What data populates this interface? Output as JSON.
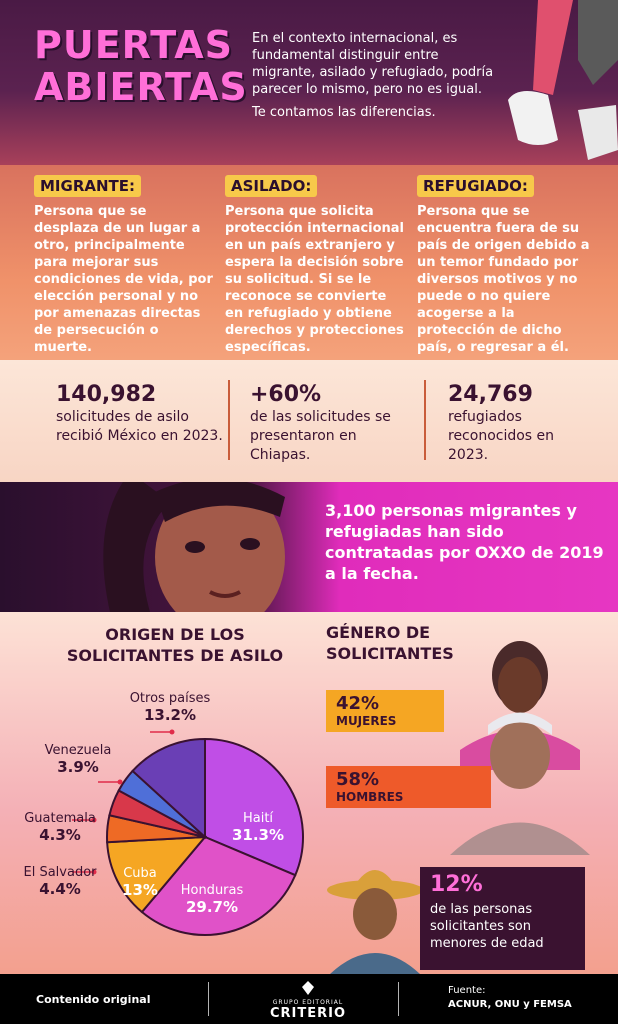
{
  "header": {
    "title_line1": "PUERTAS",
    "title_line2": "ABIERTAS",
    "intro": "En el contexto internacional, es fundamental distinguir entre migrante, asilado y refugiado, podría parecer lo mismo, pero no es igual.",
    "intro_sub": "Te contamos las diferencias."
  },
  "definitions": [
    {
      "term": "MIGRANTE:",
      "text": "Persona que se desplaza de un lugar a otro, principalmente para mejorar sus condiciones de vida, por elección personal y no por amenazas directas de persecución o muerte."
    },
    {
      "term": "ASILADO:",
      "text": "Persona que solicita protección internacional en un país extranjero y espera la decisión sobre su solicitud. Si se le reconoce se convierte en refugiado y obtiene derechos y protecciones específicas."
    },
    {
      "term": "REFUGIADO:",
      "text": "Persona que se encuentra fuera de su país de origen debido a un temor fundado por diversos motivos y no puede o no quiere acogerse a la protección de dicho país, o regresar a él."
    }
  ],
  "stats": [
    {
      "value": "140,982",
      "label": "solicitudes de asilo recibió México en 2023."
    },
    {
      "value": "+60%",
      "label": "de las solicitudes se presentaron en Chiapas."
    },
    {
      "value": "24,769",
      "label": "refugiados reconocidos en 2023."
    }
  ],
  "banner": {
    "text": "3,100 personas migrantes y refugiadas han sido contratadas por OXXO de 2019 a la fecha."
  },
  "chart_data": [
    {
      "type": "pie",
      "title": "ORIGEN DE LOS SOLICITANTES DE ASILO",
      "categories": [
        "Haití",
        "Honduras",
        "Cuba",
        "El Salvador",
        "Guatemala",
        "Venezuela",
        "Otros países"
      ],
      "values": [
        31.3,
        29.7,
        13,
        4.4,
        4.3,
        3.9,
        13.2
      ],
      "value_labels": [
        "31.3%",
        "29.7%",
        "13%",
        "4.4%",
        "4.3%",
        "3.9%",
        "13.2%"
      ],
      "colors": [
        "#c04ee6",
        "#e052c8",
        "#f5a623",
        "#ee6a25",
        "#d8384a",
        "#4f6fd8",
        "#6a3fb5"
      ]
    },
    {
      "type": "bar",
      "title": "GÉNERO DE SOLICITANTES",
      "categories": [
        "MUJERES",
        "HOMBRES"
      ],
      "values": [
        42,
        58
      ],
      "value_labels": [
        "42%",
        "58%"
      ],
      "colors": [
        "#f5a623",
        "#ee5a2a"
      ]
    }
  ],
  "minors": {
    "value": "12%",
    "text": "de las personas solicitantes son menores de edad"
  },
  "footer": {
    "original": "Contenido original",
    "logo_small": "GRUPO EDITORIAL",
    "logo_big": "CRITERIO",
    "source_label": "Fuente:",
    "source": "ACNUR, ONU y FEMSA"
  }
}
